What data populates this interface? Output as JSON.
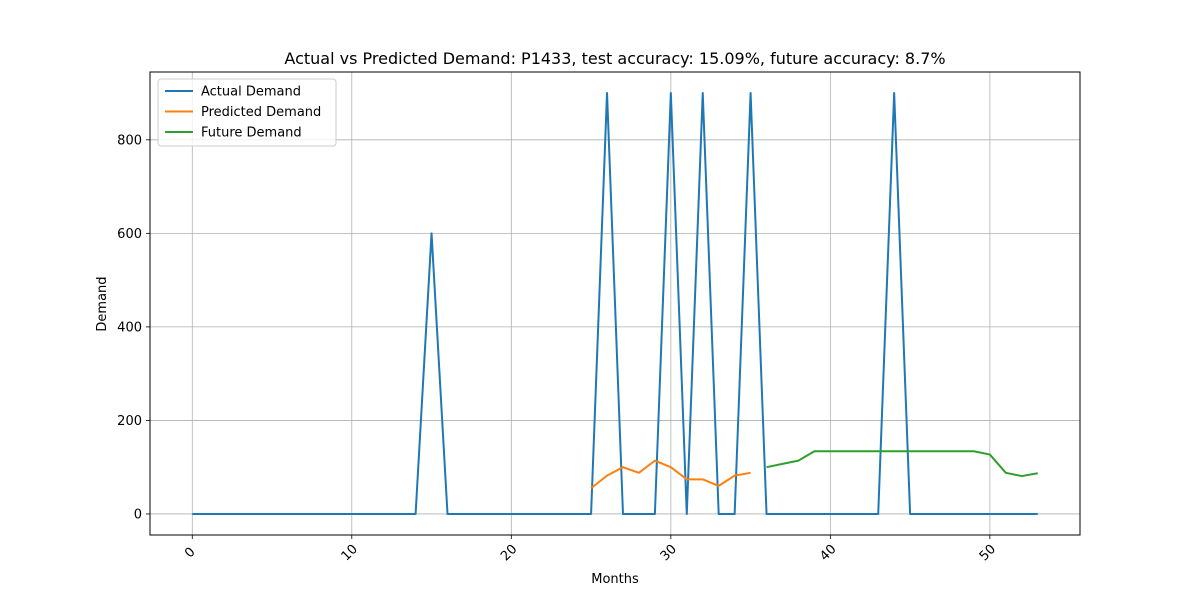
{
  "chart_data": {
    "type": "line",
    "title": "Actual vs Predicted Demand: P1433, test accuracy: 15.09%, future accuracy: 8.7%",
    "xlabel": "Months",
    "ylabel": "Demand",
    "xlim": [
      -2.65,
      55.65
    ],
    "ylim": [
      -45,
      945
    ],
    "xticks": [
      0,
      10,
      20,
      30,
      40,
      50
    ],
    "xtick_labels": [
      "0",
      "10",
      "20",
      "30",
      "40",
      "50"
    ],
    "yticks": [
      0,
      200,
      400,
      600,
      800
    ],
    "ytick_labels": [
      "0",
      "200",
      "400",
      "600",
      "800"
    ],
    "grid": true,
    "legend_position": "top-left",
    "series": [
      {
        "name": "Actual Demand",
        "color": "#1f77b4",
        "x": [
          0,
          1,
          2,
          3,
          4,
          5,
          6,
          7,
          8,
          9,
          10,
          11,
          12,
          13,
          14,
          15,
          16,
          17,
          18,
          19,
          20,
          21,
          22,
          23,
          24,
          25,
          26,
          27,
          28,
          29,
          30,
          31,
          32,
          33,
          34,
          35,
          36,
          37,
          38,
          39,
          40,
          41,
          42,
          43,
          44,
          45,
          46,
          47,
          48,
          49,
          50,
          51,
          52,
          53
        ],
        "values": [
          0,
          0,
          0,
          0,
          0,
          0,
          0,
          0,
          0,
          0,
          0,
          0,
          0,
          0,
          0,
          600,
          0,
          0,
          0,
          0,
          0,
          0,
          0,
          0,
          0,
          0,
          900,
          0,
          0,
          0,
          900,
          0,
          900,
          0,
          0,
          900,
          0,
          0,
          0,
          0,
          0,
          0,
          0,
          0,
          900,
          0,
          0,
          0,
          0,
          0,
          0,
          0,
          0,
          0
        ]
      },
      {
        "name": "Predicted Demand",
        "color": "#ff7f0e",
        "x": [
          25,
          26,
          27,
          28,
          29,
          30,
          31,
          32,
          33,
          34,
          35
        ],
        "values": [
          55,
          82,
          100,
          88,
          114,
          100,
          74,
          74,
          60,
          82,
          88
        ]
      },
      {
        "name": "Future Demand",
        "color": "#2ca02c",
        "x": [
          36,
          37,
          38,
          39,
          40,
          41,
          42,
          43,
          44,
          45,
          46,
          47,
          48,
          49,
          50,
          51,
          52,
          53
        ],
        "values": [
          100,
          107,
          114,
          134,
          134,
          134,
          134,
          134,
          134,
          134,
          134,
          134,
          134,
          134,
          127,
          88,
          81,
          87
        ]
      }
    ]
  }
}
